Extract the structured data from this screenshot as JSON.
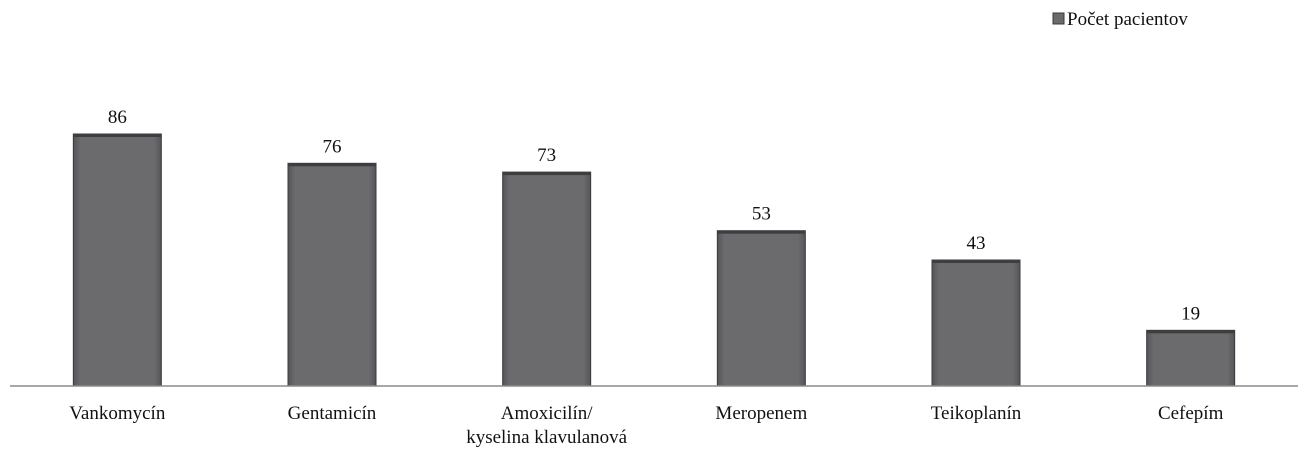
{
  "chart_data": {
    "type": "bar",
    "title": "",
    "xlabel": "",
    "ylabel": "",
    "categories": [
      [
        "Vankomycín"
      ],
      [
        "Gentamicín"
      ],
      [
        "Amoxicilín/",
        "kyselina klavulanová"
      ],
      [
        "Meropenem"
      ],
      [
        "Teikoplanín"
      ],
      [
        "Cefepím"
      ]
    ],
    "series": [
      {
        "name": "Počet pacientov",
        "values": [
          86,
          76,
          73,
          53,
          43,
          19
        ]
      }
    ],
    "ylim": [
      0,
      86
    ],
    "grid": false,
    "legend_position": "top-right",
    "data_labels": true
  },
  "colors": {
    "bar": "#6b6b6e",
    "bar_edge": "#3a3a3c",
    "axis": "#8c8c8c",
    "text": "#111111"
  }
}
